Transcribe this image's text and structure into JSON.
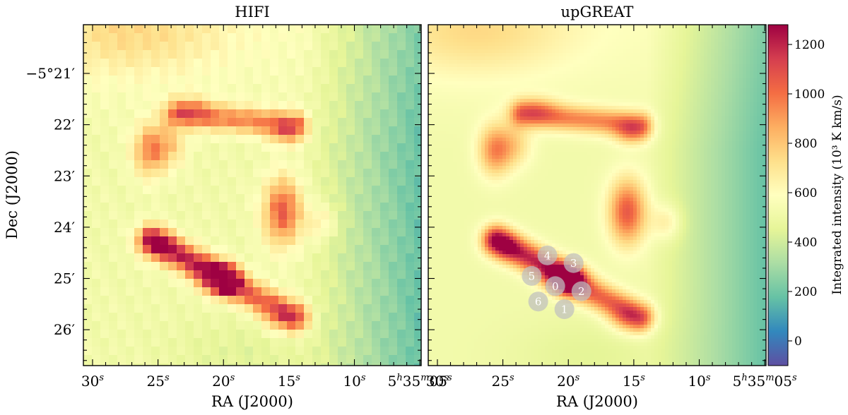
{
  "panels": [
    {
      "title": "HIFI"
    },
    {
      "title": "upGREAT"
    }
  ],
  "xlabel": "RA (J2000)",
  "ylabel": "Dec (J2000)",
  "x_ticks": [
    {
      "sec": 30,
      "label": "30",
      "unit": "s",
      "prefix": ""
    },
    {
      "sec": 25,
      "label": "25",
      "unit": "s",
      "prefix": ""
    },
    {
      "sec": 20,
      "label": "20",
      "unit": "s",
      "prefix": ""
    },
    {
      "sec": 15,
      "label": "15",
      "unit": "s",
      "prefix": ""
    },
    {
      "sec": 10,
      "label": "10",
      "unit": "s",
      "prefix": ""
    },
    {
      "sec": 5,
      "label": "05",
      "unit": "s",
      "prefix": "5h35m"
    }
  ],
  "y_ticks": [
    {
      "arcmin": 21,
      "label": "−5°21′"
    },
    {
      "arcmin": 22,
      "label": "22′"
    },
    {
      "arcmin": 23,
      "label": "23′"
    },
    {
      "arcmin": 24,
      "label": "24′"
    },
    {
      "arcmin": 25,
      "label": "25′"
    },
    {
      "arcmin": 26,
      "label": "26′"
    }
  ],
  "colorbar": {
    "label": "Integrated intensity (10³ K km/s)",
    "min": -100,
    "max": 1280,
    "ticks": [
      "0",
      "200",
      "400",
      "600",
      "800",
      "1000",
      "1200"
    ]
  },
  "chart_data": {
    "type": "heatmap",
    "x_range_sec": [
      30.7,
      4.9
    ],
    "y_range_arcmin": [
      20.05,
      26.7
    ],
    "colormap": "Spectral_r",
    "peak_value": 1280,
    "structures": [
      {
        "name": "lower-left bar",
        "from": {
          "ra_sec": 25.5,
          "dec_arcmin": 24.3
        },
        "to": {
          "ra_sec": 14.5,
          "dec_arcmin": 25.7
        },
        "peak": 1250
      },
      {
        "name": "upper arc",
        "from": {
          "ra_sec": 23.5,
          "dec_arcmin": 21.8
        },
        "to": {
          "ra_sec": 14.5,
          "dec_arcmin": 22.0
        },
        "peak": 950
      },
      {
        "name": "left clump",
        "center": {
          "ra_sec": 25.5,
          "dec_arcmin": 22.6
        },
        "peak": 1050
      },
      {
        "name": "right clump",
        "center": {
          "ra_sec": 15.5,
          "dec_arcmin": 23.6
        },
        "peak": 1150
      }
    ],
    "beam_positions": [
      {
        "label": "0",
        "ra_sec": 21.0,
        "dec_arcmin": 25.15
      },
      {
        "label": "1",
        "ra_sec": 20.3,
        "dec_arcmin": 25.6
      },
      {
        "label": "2",
        "ra_sec": 19.0,
        "dec_arcmin": 25.25
      },
      {
        "label": "3",
        "ra_sec": 19.6,
        "dec_arcmin": 24.7
      },
      {
        "label": "4",
        "ra_sec": 21.6,
        "dec_arcmin": 24.55
      },
      {
        "label": "5",
        "ra_sec": 22.8,
        "dec_arcmin": 24.95
      },
      {
        "label": "6",
        "ra_sec": 22.3,
        "dec_arcmin": 25.45
      }
    ]
  }
}
